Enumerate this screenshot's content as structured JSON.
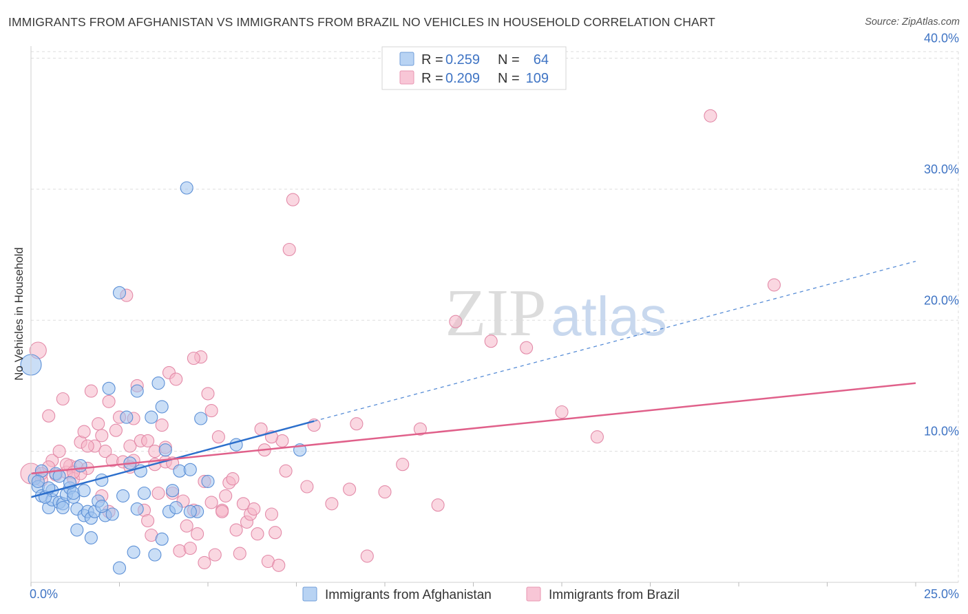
{
  "title": "IMMIGRANTS FROM AFGHANISTAN VS IMMIGRANTS FROM BRAZIL NO VEHICLES IN HOUSEHOLD CORRELATION CHART",
  "source": "Source: ZipAtlas.com",
  "watermark": {
    "zip": "ZIP",
    "atlas": "atlas"
  },
  "colors": {
    "afghanistan_fill": "#9ec3ef",
    "afghanistan_stroke": "#5b8fd6",
    "afghanistan_line": "#2c6fcc",
    "brazil_fill": "#f6b6c9",
    "brazil_stroke": "#e38aa8",
    "brazil_line": "#e0608a",
    "tick_text": "#3f74c4",
    "grid": "#dddddd"
  },
  "stats": [
    {
      "r_label": "R =",
      "r_value": "0.259",
      "n_label": "N =",
      "n_value": "64"
    },
    {
      "r_label": "R =",
      "r_value": "0.209",
      "n_label": "N =",
      "n_value": "109"
    }
  ],
  "chart_data": {
    "type": "scatter",
    "title": "IMMIGRANTS FROM AFGHANISTAN VS IMMIGRANTS FROM BRAZIL NO VEHICLES IN HOUSEHOLD CORRELATION CHART",
    "xlabel": "",
    "ylabel": "No Vehicles in Household",
    "xlim": [
      0,
      25
    ],
    "ylim": [
      0,
      40.5
    ],
    "x_tick_labels": [
      "0.0%",
      "25.0%"
    ],
    "y_ticks": [
      10,
      20,
      30,
      40
    ],
    "y_tick_labels": [
      "10.0%",
      "20.0%",
      "30.0%",
      "40.0%"
    ],
    "grid": true,
    "legend": [
      "Immigrants from Afghanistan",
      "Immigrants from Brazil"
    ],
    "series": [
      {
        "name": "Immigrants from Afghanistan",
        "r": 0.259,
        "n": 64,
        "trend": {
          "x0": 0,
          "y0": 6.5,
          "x1": 8,
          "y1": 12.3,
          "dash_to_x": 25,
          "dash_to_y": 24.5
        },
        "points": [
          [
            0.0,
            16.6,
            "L"
          ],
          [
            0.1,
            7.9
          ],
          [
            0.2,
            7.3
          ],
          [
            0.3,
            6.6
          ],
          [
            0.3,
            8.5
          ],
          [
            0.5,
            5.7
          ],
          [
            0.6,
            6.3
          ],
          [
            0.6,
            7.0
          ],
          [
            0.7,
            8.3
          ],
          [
            0.8,
            6.1
          ],
          [
            0.8,
            8.1
          ],
          [
            0.9,
            6.0
          ],
          [
            1.0,
            6.7
          ],
          [
            1.1,
            7.2
          ],
          [
            1.2,
            6.5
          ],
          [
            1.3,
            5.6
          ],
          [
            1.4,
            8.9
          ],
          [
            1.5,
            5.1
          ],
          [
            1.6,
            5.4
          ],
          [
            1.7,
            4.9
          ],
          [
            1.8,
            5.4
          ],
          [
            1.9,
            6.2
          ],
          [
            2.0,
            7.8
          ],
          [
            2.1,
            5.1
          ],
          [
            2.2,
            14.8
          ],
          [
            2.5,
            1.1
          ],
          [
            2.6,
            6.6
          ],
          [
            2.7,
            12.6
          ],
          [
            2.9,
            2.3
          ],
          [
            3.0,
            14.6
          ],
          [
            3.1,
            8.5
          ],
          [
            3.2,
            6.8
          ],
          [
            3.5,
            2.1
          ],
          [
            3.6,
            15.2
          ],
          [
            3.7,
            13.4
          ],
          [
            3.8,
            10.1
          ],
          [
            4.0,
            7.0
          ],
          [
            4.2,
            8.5
          ],
          [
            4.5,
            8.6
          ],
          [
            4.7,
            5.4
          ],
          [
            4.8,
            12.5
          ],
          [
            5.0,
            7.7
          ],
          [
            5.8,
            10.5
          ],
          [
            7.6,
            10.1
          ],
          [
            2.5,
            22.1
          ],
          [
            4.4,
            30.1
          ],
          [
            1.7,
            3.4
          ],
          [
            3.9,
            5.4
          ],
          [
            2.8,
            9.1
          ],
          [
            1.3,
            4.0
          ],
          [
            0.4,
            6.5
          ],
          [
            3.7,
            3.3
          ],
          [
            4.5,
            5.4
          ],
          [
            0.9,
            5.7
          ],
          [
            2.3,
            5.2
          ],
          [
            3.4,
            12.6
          ],
          [
            1.2,
            6.8
          ],
          [
            0.5,
            7.2
          ],
          [
            2.0,
            5.8
          ],
          [
            1.5,
            7.0
          ],
          [
            4.1,
            5.7
          ],
          [
            0.2,
            7.7
          ],
          [
            3.0,
            5.6
          ],
          [
            1.1,
            7.6
          ]
        ]
      },
      {
        "name": "Immigrants from Brazil",
        "r": 0.209,
        "n": 109,
        "trend": {
          "x0": 0,
          "y0": 8.3,
          "x1": 25,
          "y1": 15.2
        },
        "points": [
          [
            0.0,
            8.3,
            "L"
          ],
          [
            0.2,
            17.7,
            "M"
          ],
          [
            0.3,
            7.8
          ],
          [
            0.5,
            12.7
          ],
          [
            0.6,
            9.3
          ],
          [
            0.7,
            8.2
          ],
          [
            0.8,
            10.0
          ],
          [
            0.9,
            14.0
          ],
          [
            1.0,
            8.4
          ],
          [
            1.1,
            8.9
          ],
          [
            1.2,
            7.9
          ],
          [
            1.3,
            8.8
          ],
          [
            1.4,
            10.7
          ],
          [
            1.5,
            11.5
          ],
          [
            1.6,
            8.7
          ],
          [
            1.7,
            14.6
          ],
          [
            1.8,
            10.4
          ],
          [
            1.9,
            12.1
          ],
          [
            2.0,
            11.2
          ],
          [
            2.1,
            10.0
          ],
          [
            2.2,
            13.8
          ],
          [
            2.3,
            9.3
          ],
          [
            2.4,
            11.6
          ],
          [
            2.5,
            12.6
          ],
          [
            2.6,
            9.2
          ],
          [
            2.7,
            21.9
          ],
          [
            2.8,
            10.4
          ],
          [
            2.9,
            9.3
          ],
          [
            3.0,
            15.0
          ],
          [
            3.1,
            10.8
          ],
          [
            3.2,
            5.5
          ],
          [
            3.3,
            10.8
          ],
          [
            3.4,
            3.6
          ],
          [
            3.5,
            9.0
          ],
          [
            3.6,
            6.8
          ],
          [
            3.7,
            12.0
          ],
          [
            3.8,
            9.2
          ],
          [
            3.9,
            16.0
          ],
          [
            4.0,
            6.8
          ],
          [
            4.1,
            15.5
          ],
          [
            4.2,
            2.4
          ],
          [
            4.3,
            6.2
          ],
          [
            4.4,
            4.3
          ],
          [
            4.5,
            2.6
          ],
          [
            4.6,
            5.5
          ],
          [
            4.7,
            3.7
          ],
          [
            4.8,
            17.2
          ],
          [
            4.9,
            7.7
          ],
          [
            5.0,
            14.4
          ],
          [
            5.1,
            6.1
          ],
          [
            5.2,
            2.1
          ],
          [
            5.3,
            11.1
          ],
          [
            5.4,
            5.5
          ],
          [
            5.5,
            6.6
          ],
          [
            5.6,
            7.6
          ],
          [
            5.7,
            7.9
          ],
          [
            5.8,
            4.0
          ],
          [
            5.9,
            2.2
          ],
          [
            6.0,
            6.0
          ],
          [
            6.1,
            4.6
          ],
          [
            6.2,
            5.2
          ],
          [
            6.4,
            3.7
          ],
          [
            6.5,
            11.7
          ],
          [
            6.6,
            10.1
          ],
          [
            6.7,
            1.6
          ],
          [
            6.8,
            5.2
          ],
          [
            6.9,
            3.8
          ],
          [
            7.0,
            1.3
          ],
          [
            7.1,
            10.8
          ],
          [
            7.2,
            8.5
          ],
          [
            7.3,
            25.4,
            "P"
          ],
          [
            7.4,
            29.2,
            "P"
          ],
          [
            8.0,
            12.0
          ],
          [
            8.5,
            6.0
          ],
          [
            9.0,
            7.1
          ],
          [
            9.5,
            2.0
          ],
          [
            10.0,
            6.9
          ],
          [
            10.5,
            9.0
          ],
          [
            11.0,
            11.7
          ],
          [
            11.5,
            5.9
          ],
          [
            12.0,
            19.9
          ],
          [
            13.0,
            18.4
          ],
          [
            14.0,
            17.9
          ],
          [
            15.0,
            13.0
          ],
          [
            16.0,
            11.1
          ],
          [
            19.2,
            35.6
          ],
          [
            21.0,
            22.7
          ],
          [
            6.3,
            5.6
          ],
          [
            5.4,
            5.4
          ],
          [
            4.0,
            9.1
          ],
          [
            3.5,
            10.0
          ],
          [
            2.8,
            8.8
          ],
          [
            2.0,
            6.6
          ],
          [
            1.6,
            10.4
          ],
          [
            1.0,
            9.0
          ],
          [
            0.5,
            8.8
          ],
          [
            5.1,
            13.1
          ],
          [
            4.6,
            17.1
          ],
          [
            3.8,
            10.3
          ],
          [
            2.9,
            12.5
          ],
          [
            6.8,
            11.1
          ],
          [
            7.8,
            7.3
          ],
          [
            9.2,
            12.1
          ],
          [
            1.4,
            8.3
          ],
          [
            2.2,
            5.4
          ],
          [
            3.3,
            4.7
          ],
          [
            4.9,
            1.5
          ],
          [
            0.3,
            8.3
          ],
          [
            1.2,
            8.4
          ]
        ]
      }
    ]
  }
}
